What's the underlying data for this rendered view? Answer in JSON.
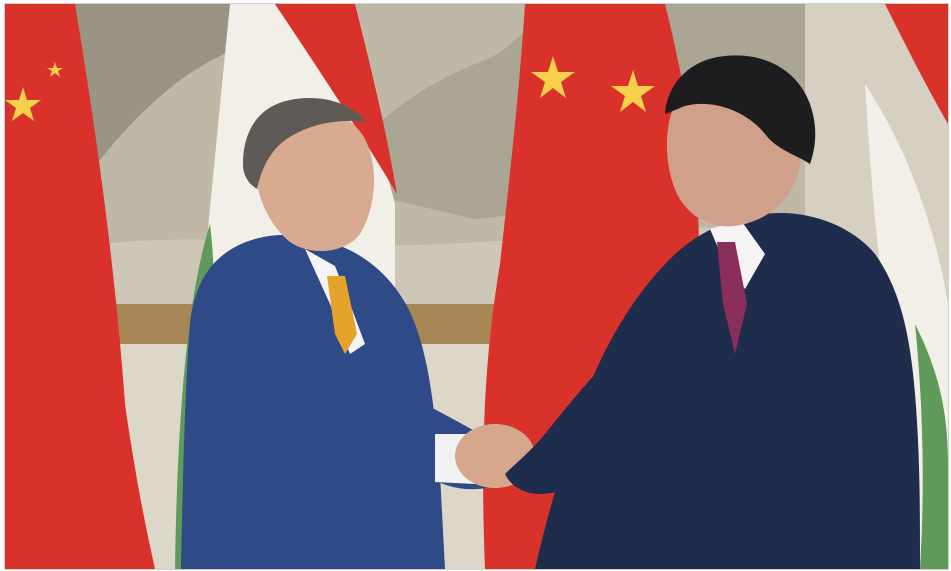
{
  "photo": {
    "scene": "two-men-shaking-hands-in-front-of-flags",
    "flags": [
      "china-flag",
      "hungary-flag",
      "china-flag",
      "china-flag",
      "hungary-flag"
    ],
    "colors": {
      "china_red": "#d8322a",
      "star_yellow": "#f6d04a",
      "hungary_green": "#5f9a5a",
      "suit_left": "#2f4b87",
      "suit_right": "#1f2d4d",
      "tie_left": "#e4a32a",
      "tie_right": "#8a2f5a",
      "wall_panel": "#d9d2c2",
      "wood_rail": "#9b7a4c"
    }
  }
}
